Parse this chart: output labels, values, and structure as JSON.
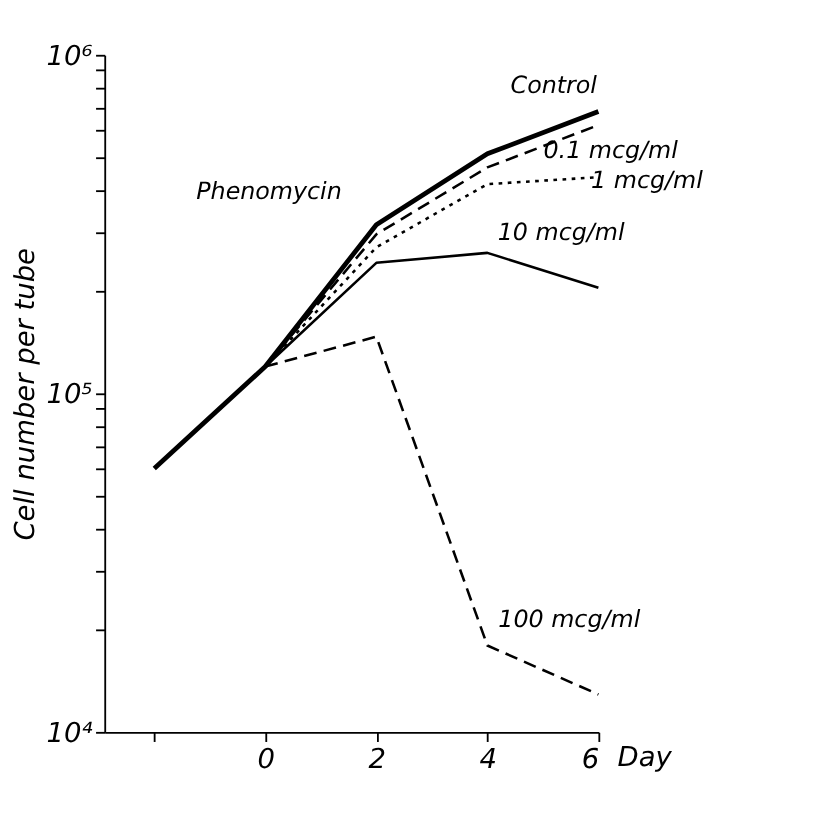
{
  "chart_data": {
    "type": "line",
    "ylabel": "Cell number per tube",
    "xlabel": "Day",
    "log": "y",
    "grid": false,
    "marker": "none",
    "xlim": [
      -2.9,
      6
    ],
    "xticks": [
      {
        "value": -2,
        "label": null
      },
      0,
      2,
      4,
      6
    ],
    "ylim": [
      10000,
      1000000
    ],
    "yticks": [
      {
        "value": 10000,
        "label": "10⁴"
      },
      {
        "value": 20000,
        "label": null
      },
      {
        "value": 30000,
        "label": null
      },
      {
        "value": 40000,
        "label": null
      },
      {
        "value": 50000,
        "label": null
      },
      {
        "value": 60000,
        "label": null
      },
      {
        "value": 70000,
        "label": null
      },
      {
        "value": 80000,
        "label": null
      },
      {
        "value": 90000,
        "label": null
      },
      {
        "value": 100000,
        "label": "10⁵"
      },
      {
        "value": 200000,
        "label": null
      },
      {
        "value": 300000,
        "label": null
      },
      {
        "value": 400000,
        "label": null
      },
      {
        "value": 500000,
        "label": null
      },
      {
        "value": 600000,
        "label": null
      },
      {
        "value": 700000,
        "label": null
      },
      {
        "value": 800000,
        "label": null
      },
      {
        "value": 900000,
        "label": null
      },
      {
        "value": 1000000,
        "label": "10⁶"
      }
    ],
    "series": [
      {
        "name": "Control",
        "color": "#000000",
        "line_style": "solid",
        "x": [
          -2,
          0,
          2,
          4,
          6
        ],
        "values": [
          60000,
          120000,
          315000,
          510000,
          680000
        ]
      },
      {
        "name": "0.1 mcg/ml",
        "color": "#000000",
        "line_style": "dashed",
        "x": [
          0,
          2,
          4,
          6
        ],
        "values": [
          120000,
          295000,
          465000,
          620000
        ]
      },
      {
        "name": "1 mcg/ml",
        "color": "#000000",
        "line_style": "dotted",
        "x": [
          0,
          2,
          4,
          6
        ],
        "values": [
          120000,
          270000,
          415000,
          435000
        ]
      },
      {
        "name": "10 mcg/ml",
        "color": "#000000",
        "line_style": "solid",
        "x": [
          0,
          2,
          4,
          6
        ],
        "values": [
          120000,
          243000,
          260000,
          205000
        ]
      },
      {
        "name": "100 mcg/ml",
        "color": "#000000",
        "line_style": "dashed",
        "x": [
          0,
          2,
          4,
          6
        ],
        "values": [
          120000,
          147000,
          18000,
          12900
        ]
      }
    ],
    "annotations": [
      "Phenomycin"
    ]
  }
}
